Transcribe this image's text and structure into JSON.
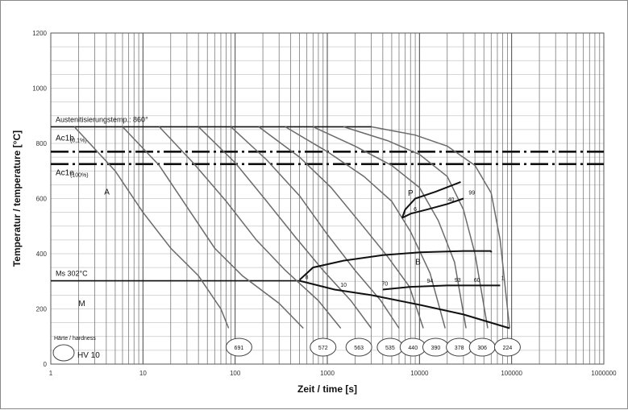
{
  "chart_data": {
    "type": "line",
    "title": "",
    "xlabel": "Zeit / time [s]",
    "ylabel": "Temperatur / temperature [°C]",
    "x_scale": "log",
    "xlim": [
      1,
      1000000
    ],
    "ylim": [
      0,
      1200
    ],
    "x_ticks": [
      1,
      10,
      100,
      1000,
      10000,
      100000,
      1000000
    ],
    "x_tick_labels": [
      "1",
      "10",
      "100",
      "1000",
      "10000",
      "100000",
      "1000000"
    ],
    "y_ticks": [
      0,
      200,
      400,
      600,
      800,
      1000,
      1200
    ],
    "y_tick_labels": [
      "0",
      "200",
      "400",
      "600",
      "800",
      "1000",
      "1200"
    ],
    "grid": true,
    "reference_lines": [
      {
        "label": "Austenitisierungstemp.: 860°",
        "y": 860,
        "style": "solid"
      },
      {
        "label": "Ac1b",
        "sub": "(0,1%)",
        "y": 770,
        "style": "dash-dot"
      },
      {
        "label": "Ac1e",
        "sub": "(100%)",
        "y": 725,
        "style": "dash-dot"
      },
      {
        "label": "Ms 302°C",
        "y": 302,
        "style": "solid"
      }
    ],
    "phase_labels": [
      {
        "text": "A",
        "x": 3.8,
        "y": 615
      },
      {
        "text": "P",
        "x": 7500,
        "y": 610
      },
      {
        "text": "B",
        "x": 9000,
        "y": 360
      },
      {
        "text": "M",
        "x": 2.0,
        "y": 210
      }
    ],
    "phase_fractions": [
      {
        "text": "6",
        "x": 9000,
        "y": 555
      },
      {
        "text": "40",
        "x": 22000,
        "y": 590
      },
      {
        "text": "99",
        "x": 37000,
        "y": 615
      },
      {
        "text": "8",
        "x": 600,
        "y": 308
      },
      {
        "text": "10",
        "x": 1500,
        "y": 280
      },
      {
        "text": "70",
        "x": 4200,
        "y": 285
      },
      {
        "text": "94",
        "x": 13000,
        "y": 295
      },
      {
        "text": "93",
        "x": 26000,
        "y": 298
      },
      {
        "text": "60",
        "x": 42000,
        "y": 298
      },
      {
        "text": "1",
        "x": 80000,
        "y": 305
      }
    ],
    "hardness_title": "Härte / hardness",
    "hardness_unit": "HV 10",
    "hardness_values": [
      {
        "value": "691",
        "x": 110
      },
      {
        "value": "572",
        "x": 900
      },
      {
        "value": "563",
        "x": 2200
      },
      {
        "value": "535",
        "x": 4800
      },
      {
        "value": "440",
        "x": 8500
      },
      {
        "value": "390",
        "x": 15000
      },
      {
        "value": "378",
        "x": 27000
      },
      {
        "value": "306",
        "x": 48000
      },
      {
        "value": "224",
        "x": 90000
      }
    ],
    "series": [
      {
        "values": [
          [
            1.8,
            860
          ],
          [
            5,
            700
          ],
          [
            10,
            550
          ],
          [
            20,
            420
          ],
          [
            40,
            320
          ],
          [
            70,
            200
          ],
          [
            85,
            130
          ]
        ]
      },
      {
        "values": [
          [
            6,
            860
          ],
          [
            15,
            720
          ],
          [
            30,
            570
          ],
          [
            60,
            420
          ],
          [
            120,
            320
          ],
          [
            300,
            220
          ],
          [
            550,
            130
          ]
        ]
      },
      {
        "values": [
          [
            15,
            860
          ],
          [
            35,
            730
          ],
          [
            80,
            590
          ],
          [
            170,
            450
          ],
          [
            350,
            340
          ],
          [
            800,
            230
          ],
          [
            1400,
            130
          ]
        ]
      },
      {
        "values": [
          [
            40,
            860
          ],
          [
            100,
            730
          ],
          [
            220,
            590
          ],
          [
            450,
            460
          ],
          [
            900,
            340
          ],
          [
            1800,
            230
          ],
          [
            3000,
            130
          ]
        ]
      },
      {
        "values": [
          [
            90,
            860
          ],
          [
            220,
            740
          ],
          [
            500,
            610
          ],
          [
            1000,
            470
          ],
          [
            2000,
            340
          ],
          [
            3800,
            230
          ],
          [
            6000,
            130
          ]
        ]
      },
      {
        "values": [
          [
            180,
            860
          ],
          [
            500,
            750
          ],
          [
            1100,
            640
          ],
          [
            2300,
            510
          ],
          [
            4500,
            390
          ],
          [
            7800,
            280
          ],
          [
            11000,
            130
          ]
        ]
      },
      {
        "values": [
          [
            350,
            860
          ],
          [
            1000,
            770
          ],
          [
            2500,
            680
          ],
          [
            5000,
            590
          ],
          [
            8000,
            480
          ],
          [
            13000,
            330
          ],
          [
            19000,
            130
          ]
        ]
      },
      {
        "values": [
          [
            700,
            860
          ],
          [
            2000,
            790
          ],
          [
            5000,
            720
          ],
          [
            10000,
            640
          ],
          [
            16000,
            520
          ],
          [
            24000,
            370
          ],
          [
            32000,
            130
          ]
        ]
      },
      {
        "values": [
          [
            1500,
            860
          ],
          [
            4500,
            810
          ],
          [
            10000,
            760
          ],
          [
            20000,
            680
          ],
          [
            30000,
            560
          ],
          [
            40000,
            400
          ],
          [
            55000,
            130
          ]
        ]
      },
      {
        "values": [
          [
            3000,
            860
          ],
          [
            9000,
            830
          ],
          [
            20000,
            790
          ],
          [
            40000,
            720
          ],
          [
            60000,
            620
          ],
          [
            75000,
            450
          ],
          [
            95000,
            130
          ]
        ]
      }
    ],
    "boundaries": {
      "pearlite_start": [
        [
          6500,
          530
        ],
        [
          7000,
          560
        ],
        [
          9000,
          600
        ],
        [
          15000,
          625
        ],
        [
          28000,
          660
        ]
      ],
      "pearlite_end": [
        [
          6500,
          530
        ],
        [
          8000,
          545
        ],
        [
          12000,
          560
        ],
        [
          20000,
          580
        ],
        [
          30000,
          600
        ]
      ],
      "bainite_start": [
        [
          500,
          305
        ],
        [
          700,
          350
        ],
        [
          1500,
          375
        ],
        [
          4000,
          395
        ],
        [
          10000,
          405
        ],
        [
          30000,
          410
        ],
        [
          60000,
          410
        ]
      ],
      "bainite_end": [
        [
          4000,
          270
        ],
        [
          8000,
          280
        ],
        [
          20000,
          285
        ],
        [
          40000,
          285
        ],
        [
          75000,
          285
        ]
      ],
      "martensite_line": [
        [
          500,
          302
        ],
        [
          1200,
          270
        ],
        [
          3000,
          250
        ],
        [
          10000,
          215
        ],
        [
          30000,
          180
        ],
        [
          95000,
          130
        ]
      ]
    }
  }
}
